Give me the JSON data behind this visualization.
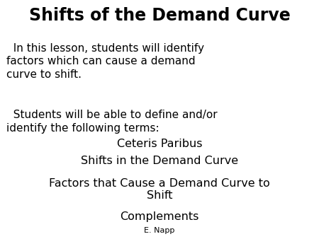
{
  "background_color": "#ffffff",
  "title": "Shifts of the Demand Curve",
  "title_fontsize": 17,
  "title_fontweight": "bold",
  "title_fontfamily": "DejaVu Sans",
  "subtitle": "  In this lesson, students will identify\nfactors which can cause a demand\ncurve to shift.",
  "subtitle_fontsize": 11,
  "body": "  Students will be able to define and/or\nidentify the following terms:",
  "body_fontsize": 11,
  "terms": [
    "Ceteris Paribus",
    "Shifts in the Demand Curve",
    "Factors that Cause a Demand Curve to\nShift",
    "Complements"
  ],
  "terms_fontsize": 11.5,
  "footer": "E. Napp",
  "footer_fontsize": 8,
  "text_color": "#000000"
}
